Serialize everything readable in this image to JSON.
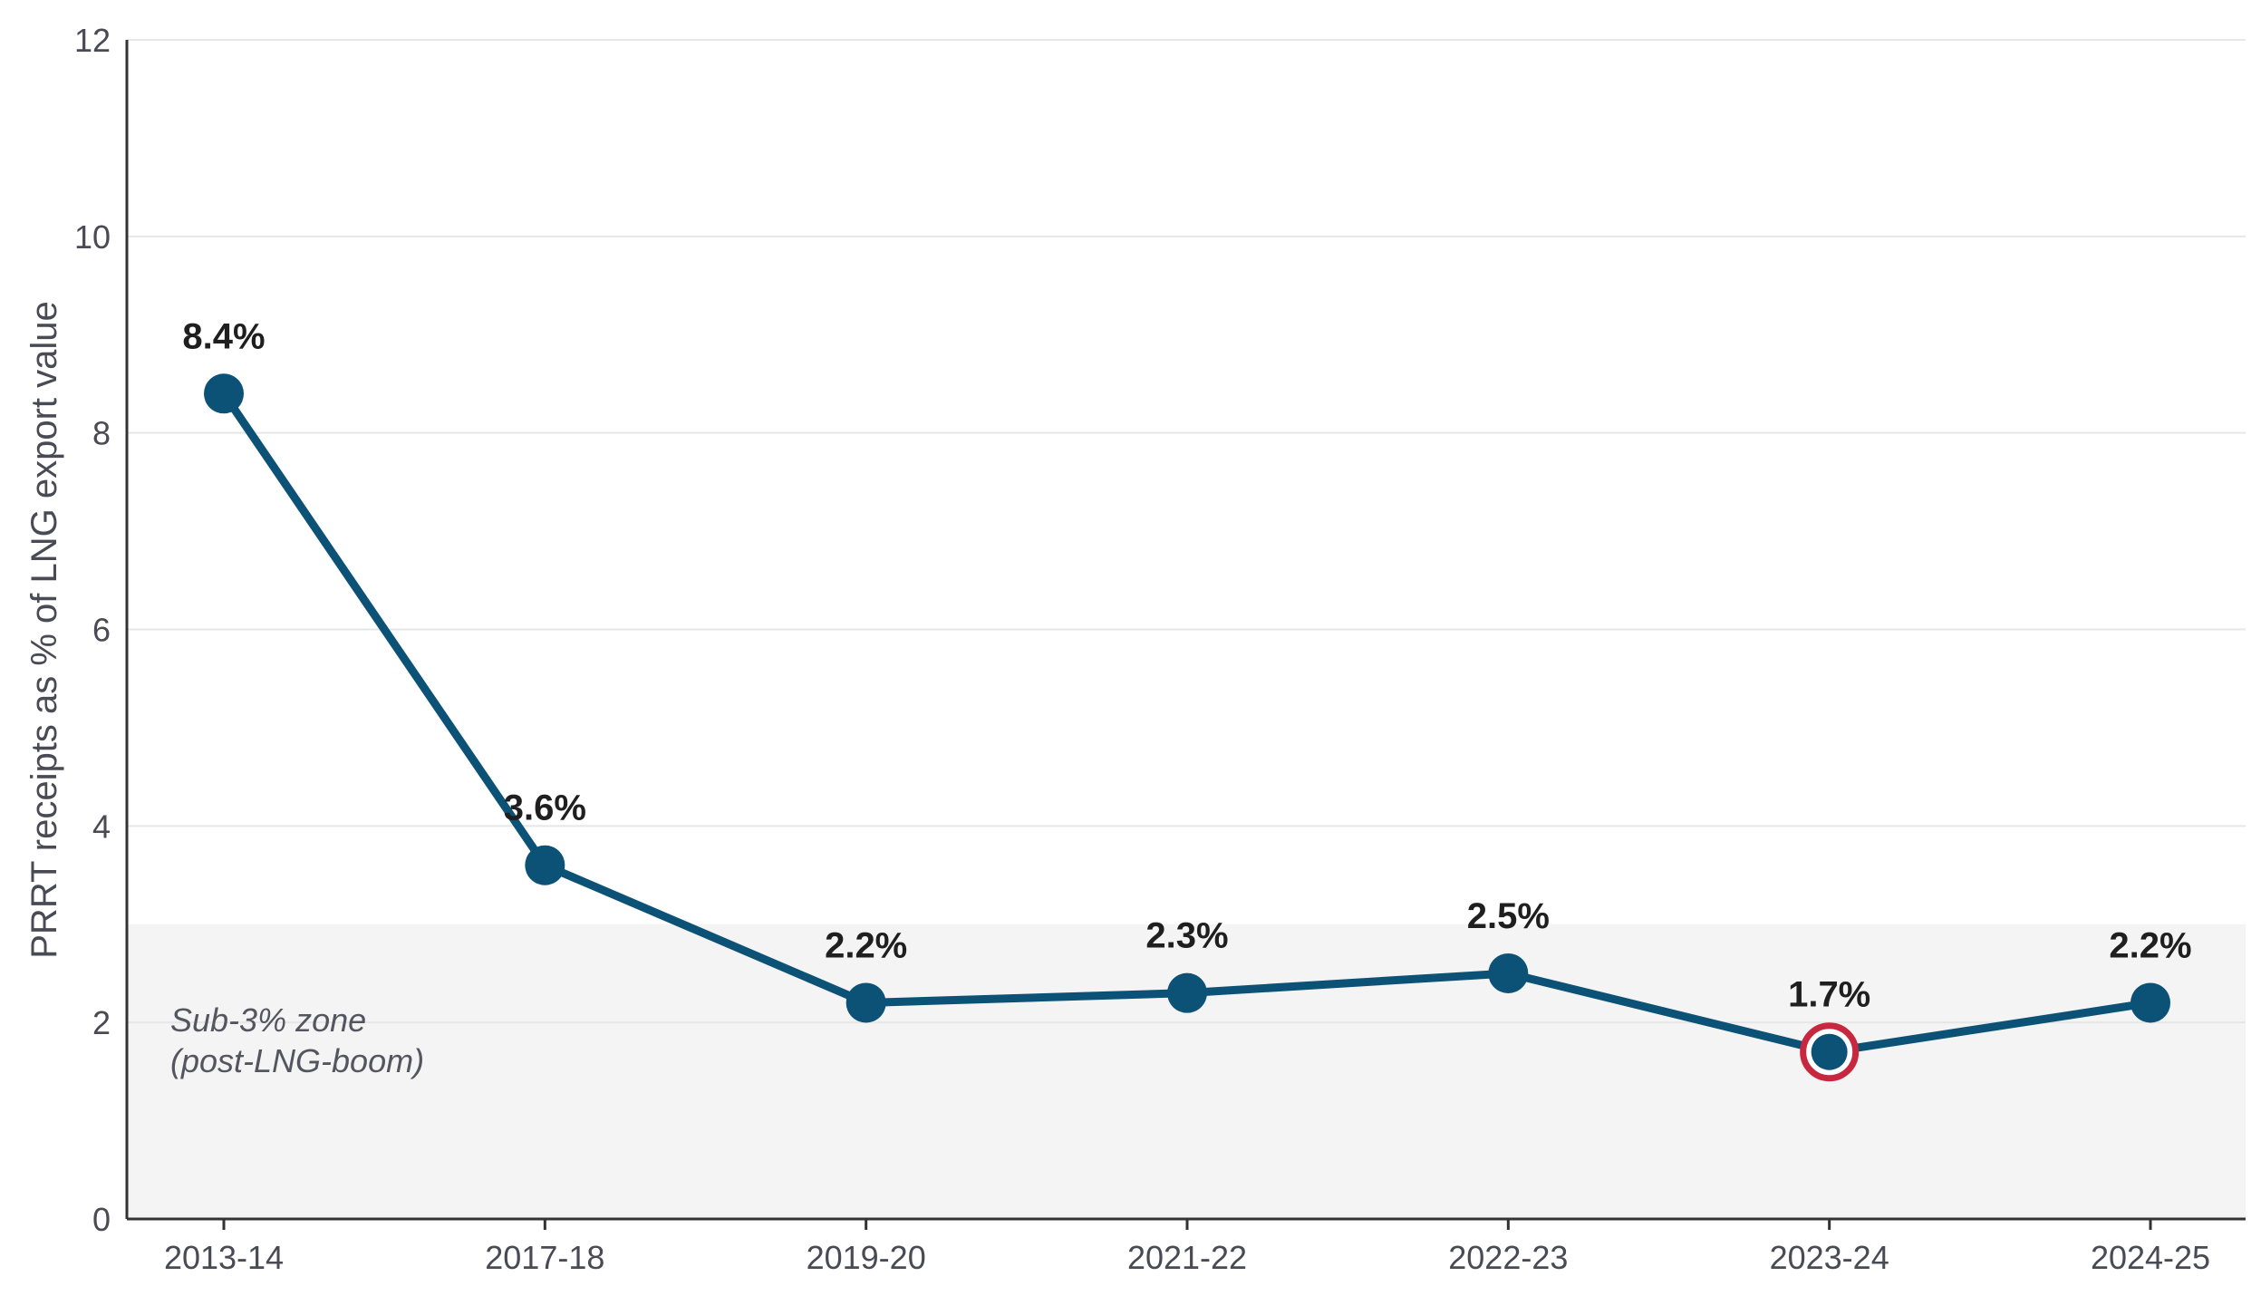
{
  "chart_data": {
    "type": "line",
    "title": "",
    "xlabel": "",
    "ylabel": "PRRT receipts as % of LNG export value",
    "categories": [
      "2013-14",
      "2017-18",
      "2019-20",
      "2021-22",
      "2022-23",
      "2023-24",
      "2024-25"
    ],
    "series": [
      {
        "values": [
          8.4,
          3.6,
          2.2,
          2.3,
          2.5,
          1.7,
          2.2
        ]
      }
    ],
    "data_labels": [
      "8.4%",
      "3.6%",
      "2.2%",
      "2.3%",
      "2.5%",
      "1.7%",
      "2.2%"
    ],
    "highlight_index": 5,
    "ylim": [
      0,
      12
    ],
    "yticks": [
      0,
      2,
      4,
      6,
      8,
      10,
      12
    ],
    "grid": true,
    "shaded_band": {
      "from": 0,
      "to": 3,
      "label_line1": "Sub-3% zone",
      "label_line2": "(post-LNG-boom)"
    },
    "colors": {
      "line": "#0b5276",
      "highlight": "#c8283f",
      "band": "#f4f4f4",
      "grid": "#e6e6e6",
      "axis": "#333333",
      "label": "#1f1f1f"
    }
  }
}
